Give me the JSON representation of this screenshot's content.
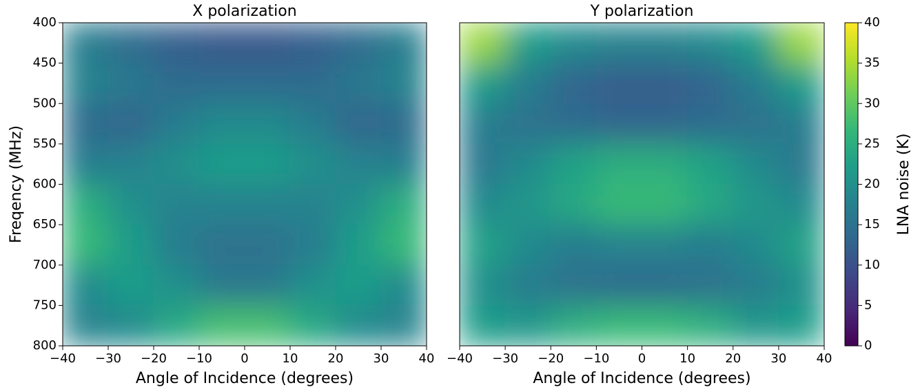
{
  "chart_data": [
    {
      "type": "heatmap",
      "title": "X polarization",
      "x_label": "Angle of Incidence (degrees)",
      "y_label": "Freqency (MHz)",
      "x": [
        -35,
        -25,
        -15,
        -5,
        5,
        15,
        25,
        35
      ],
      "y": [
        425,
        475,
        525,
        575,
        625,
        675,
        725,
        775
      ],
      "values": [
        [
          17,
          14,
          12,
          11,
          11,
          12,
          14,
          17
        ],
        [
          18,
          16,
          14,
          14,
          14,
          14,
          16,
          18
        ],
        [
          14,
          13,
          17,
          19,
          19,
          17,
          13,
          14
        ],
        [
          17,
          18,
          20,
          22,
          22,
          20,
          18,
          17
        ],
        [
          25,
          20,
          18,
          18,
          18,
          18,
          20,
          25
        ],
        [
          27,
          22,
          17,
          15,
          15,
          17,
          22,
          27
        ],
        [
          19,
          22,
          20,
          16,
          16,
          20,
          22,
          19
        ],
        [
          18,
          19,
          24,
          28,
          28,
          24,
          19,
          18
        ]
      ],
      "xlim": [
        -40,
        40
      ],
      "xticks": [
        {
          "value": -40,
          "label": "−40"
        },
        {
          "value": -30,
          "label": "−30"
        },
        {
          "value": -20,
          "label": "−20"
        },
        {
          "value": -10,
          "label": "−10"
        },
        0,
        10,
        20,
        30,
        40
      ],
      "ylim": [
        800,
        400
      ],
      "yticks": [
        400,
        450,
        500,
        550,
        600,
        650,
        700,
        750,
        800
      ]
    },
    {
      "type": "heatmap",
      "title": "Y polarization",
      "x_label": "Angle of Incidence (degrees)",
      "x": [
        -35,
        -25,
        -15,
        -5,
        5,
        15,
        25,
        35
      ],
      "y": [
        425,
        475,
        525,
        575,
        625,
        675,
        725,
        775
      ],
      "values": [
        [
          34,
          22,
          19,
          18,
          18,
          19,
          22,
          34
        ],
        [
          22,
          17,
          13,
          12,
          12,
          13,
          17,
          22
        ],
        [
          17,
          15,
          14,
          13,
          13,
          14,
          15,
          17
        ],
        [
          16,
          19,
          23,
          25,
          25,
          23,
          19,
          16
        ],
        [
          19,
          21,
          24,
          27,
          27,
          24,
          21,
          19
        ],
        [
          23,
          19,
          17,
          18,
          18,
          17,
          19,
          23
        ],
        [
          20,
          17,
          15,
          14,
          14,
          15,
          17,
          20
        ],
        [
          22,
          21,
          25,
          27,
          27,
          25,
          21,
          22
        ]
      ],
      "xlim": [
        -40,
        40
      ],
      "xticks": [
        {
          "value": -40,
          "label": "−40"
        },
        {
          "value": -30,
          "label": "−30"
        },
        {
          "value": -20,
          "label": "−20"
        },
        {
          "value": -10,
          "label": "−10"
        },
        0,
        10,
        20,
        30,
        40
      ],
      "ylim": [
        800,
        400
      ]
    }
  ],
  "colorbar": {
    "label": "LNA noise (K)",
    "lim": [
      0,
      40
    ],
    "ticks": [
      0,
      5,
      10,
      15,
      20,
      25,
      30,
      35,
      40
    ],
    "colors": [
      "#440154",
      "#482878",
      "#3e4989",
      "#31688e",
      "#26828e",
      "#1f9e89",
      "#35b779",
      "#6ece58",
      "#b5de2b",
      "#fde725"
    ]
  }
}
